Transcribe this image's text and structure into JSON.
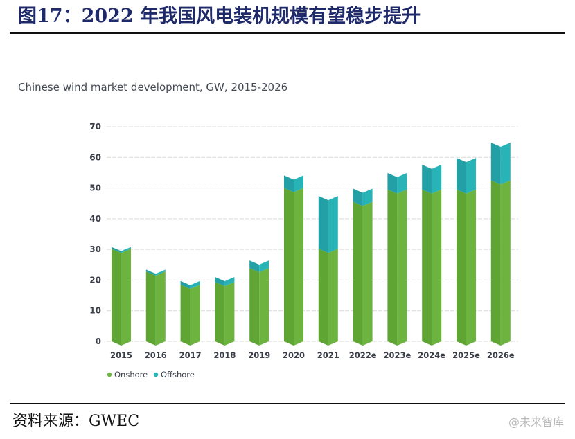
{
  "figure": {
    "title": "图17：2022 年我国风电装机规模有望稳步提升",
    "source": "资料来源：GWEC",
    "watermark": "@未来智库"
  },
  "colors": {
    "onshore": "#6cb33f",
    "onshore_dark": "#5fa534",
    "offshore": "#28b4b6",
    "offshore_dark": "#22a0a6",
    "title": "#1f2a6b",
    "grid": "#d9d9d9"
  },
  "chart_data": {
    "type": "bar",
    "stacked": true,
    "title": "Chinese wind market development, GW, 2015-2026",
    "xlabel": "",
    "ylabel": "",
    "ylim": [
      0,
      70
    ],
    "yticks": [
      0,
      10,
      20,
      30,
      40,
      50,
      60,
      70
    ],
    "grid": true,
    "legend_position": "bottom-left",
    "categories": [
      "2015",
      "2016",
      "2017",
      "2018",
      "2019",
      "2020",
      "2021",
      "2022e",
      "2023e",
      "2024e",
      "2025e",
      "2026e"
    ],
    "series": [
      {
        "name": "Onshore",
        "values": [
          30.2,
          22.8,
          18.5,
          19.4,
          23.9,
          50.0,
          30.2,
          45.5,
          49.5,
          49.5,
          49.5,
          52.5
        ]
      },
      {
        "name": "Offshore",
        "values": [
          0.6,
          0.6,
          1.2,
          1.6,
          2.5,
          4.1,
          17.2,
          4.3,
          5.4,
          8.1,
          10.3,
          12.3
        ]
      }
    ]
  }
}
